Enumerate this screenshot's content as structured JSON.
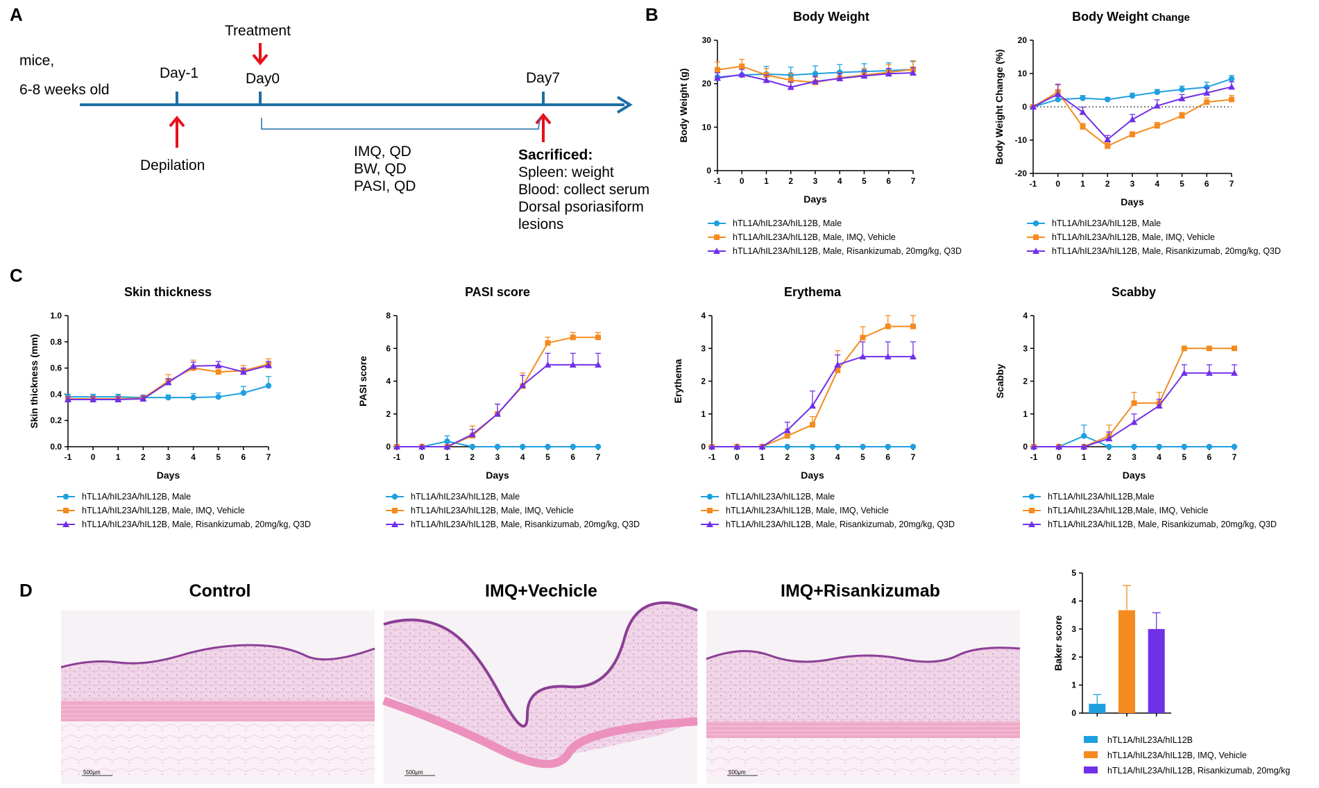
{
  "panels": {
    "a": "A",
    "b": "B",
    "c": "C",
    "d": "D"
  },
  "timeline": {
    "mice": "mice,",
    "age": "6-8 weeks old",
    "day_minus1": "Day-1",
    "depilation": "Depilation",
    "treatment": "Treatment",
    "day0": "Day0",
    "day7": "Day7",
    "dosing": [
      "IMQ, QD",
      "BW, QD",
      "PASI, QD"
    ],
    "sacrificed": "Sacrificed:",
    "sacrificed_items": [
      "Spleen: weight",
      "Blood: collect serum",
      "Dorsal psoriasiform",
      "lesions"
    ]
  },
  "colors": {
    "male": "#1E9FE0",
    "vehicle": "#F58A1F",
    "risankizumab": "#7030E8",
    "axis": "#000000",
    "arrow_red": "#E8101A",
    "timeline_blue": "#1F6FA3"
  },
  "histology": {
    "titles": [
      "Control",
      "IMQ+Vechicle",
      "IMQ+Risankizumab"
    ],
    "scale_bar": "500μm"
  },
  "chart_data": [
    {
      "type": "line",
      "title": "Body Weight",
      "title_small": "",
      "xlabel": "Days",
      "ylabel": "Body Weight (g)",
      "x": [
        -1,
        0,
        1,
        2,
        3,
        4,
        5,
        6,
        7
      ],
      "ylim": [
        0,
        30
      ],
      "yticks": [
        0,
        10,
        20,
        30
      ],
      "zero_line": false,
      "series": [
        {
          "name": "hTL1A/hIL23A/hIL12B, Male",
          "color": "#1E9FE0",
          "marker": "circle",
          "values": [
            21.5,
            22.0,
            22.2,
            22.0,
            22.3,
            22.6,
            22.8,
            23.0,
            23.3
          ],
          "err": [
            1.5,
            1.5,
            1.8,
            1.8,
            1.8,
            1.8,
            1.8,
            1.8,
            1.8
          ]
        },
        {
          "name": "hTL1A/hIL23A/hIL12B, Male, IMQ, Vehicle",
          "color": "#F58A1F",
          "marker": "square",
          "values": [
            23.2,
            24.0,
            22.0,
            20.8,
            20.3,
            21.3,
            22.0,
            22.6,
            23.3
          ],
          "err": [
            1.8,
            1.6,
            1.5,
            1.5,
            1.2,
            1.2,
            1.5,
            1.8,
            2.0
          ]
        },
        {
          "name": "hTL1A/hIL23A/hIL12B, Male, Risankizumab, 20mg/kg, Q3D",
          "color": "#7030E8",
          "marker": "triangle",
          "values": [
            21.3,
            22.1,
            20.8,
            19.2,
            20.5,
            21.2,
            21.8,
            22.3,
            22.5
          ],
          "err": [
            1.2,
            1.2,
            1.2,
            1.2,
            1.2,
            1.2,
            1.2,
            1.2,
            1.2
          ]
        }
      ],
      "legend": "below"
    },
    {
      "type": "line",
      "title": "Body Weight ",
      "title_small": "Change",
      "xlabel": "Days",
      "ylabel": "Body Weight Change (%)",
      "x": [
        -1,
        0,
        1,
        2,
        3,
        4,
        5,
        6,
        7
      ],
      "ylim": [
        -20,
        20
      ],
      "yticks": [
        -20,
        -10,
        0,
        10,
        20
      ],
      "zero_line": true,
      "series": [
        {
          "name": "hTL1A/hIL23A/hIL12B, Male",
          "color": "#1E9FE0",
          "marker": "circle",
          "values": [
            0,
            2.2,
            2.6,
            2.2,
            3.3,
            4.4,
            5.2,
            5.9,
            8.4
          ],
          "err": [
            0,
            1.2,
            0.8,
            0.6,
            0.8,
            0.8,
            1.0,
            1.5,
            1.0
          ]
        },
        {
          "name": "hTL1A/hIL23A/hIL12B, Male, IMQ, Vehicle",
          "color": "#F58A1F",
          "marker": "square",
          "values": [
            0,
            4.5,
            -6.0,
            -11.8,
            -8.3,
            -5.7,
            -2.7,
            1.4,
            2.2
          ],
          "err": [
            0,
            2.0,
            1.0,
            1.0,
            0.8,
            1.0,
            1.0,
            1.3,
            1.2
          ]
        },
        {
          "name": "hTL1A/hIL23A/hIL12B, Male, Risankizumab, 20mg/kg, Q3D",
          "color": "#7030E8",
          "marker": "triangle",
          "values": [
            0,
            3.8,
            -1.6,
            -9.8,
            -3.8,
            0.3,
            2.5,
            4.2,
            6.0
          ],
          "err": [
            0,
            3.0,
            1.5,
            1.2,
            1.5,
            1.8,
            1.2,
            1.5,
            1.5
          ]
        }
      ],
      "legend": "below"
    },
    {
      "type": "line",
      "title": "Skin thickness",
      "title_small": "",
      "xlabel": "Days",
      "ylabel": "Skin thickness (mm)",
      "x": [
        -1,
        0,
        1,
        2,
        3,
        4,
        5,
        6,
        7
      ],
      "ylim": [
        0,
        1.0
      ],
      "yticks": [
        0.0,
        0.2,
        0.4,
        0.6,
        0.8,
        1.0
      ],
      "zero_line": false,
      "series": [
        {
          "name": "hTL1A/hIL23A/hIL12B, Male",
          "color": "#1E9FE0",
          "marker": "circle",
          "values": [
            0.38,
            0.38,
            0.38,
            0.375,
            0.375,
            0.375,
            0.38,
            0.41,
            0.465
          ],
          "err": [
            0.02,
            0.02,
            0.02,
            0.02,
            0.02,
            0.03,
            0.03,
            0.05,
            0.07
          ]
        },
        {
          "name": "hTL1A/hIL23A/hIL12B, Male, IMQ, Vehicle",
          "color": "#F58A1F",
          "marker": "square",
          "values": [
            0.365,
            0.365,
            0.365,
            0.37,
            0.5,
            0.6,
            0.57,
            0.58,
            0.63
          ],
          "err": [
            0.02,
            0.02,
            0.02,
            0.02,
            0.05,
            0.06,
            0.04,
            0.04,
            0.04
          ]
        },
        {
          "name": "hTL1A/hIL23A/hIL12B, Male, Risankizumab, 20mg/kg, Q3D",
          "color": "#7030E8",
          "marker": "triangle",
          "values": [
            0.36,
            0.36,
            0.36,
            0.365,
            0.49,
            0.615,
            0.62,
            0.57,
            0.62
          ],
          "err": [
            0.02,
            0.02,
            0.02,
            0.02,
            0.03,
            0.03,
            0.03,
            0.03,
            0.03
          ]
        }
      ],
      "legend": "below"
    },
    {
      "type": "line",
      "title": "PASI score",
      "title_small": "",
      "xlabel": "Days",
      "ylabel": "PASI score",
      "x": [
        -1,
        0,
        1,
        2,
        3,
        4,
        5,
        6,
        7
      ],
      "ylim": [
        0,
        8
      ],
      "yticks": [
        0,
        2,
        4,
        6,
        8
      ],
      "zero_line": false,
      "series": [
        {
          "name": "hTL1A/hIL23A/hIL12B, Male",
          "color": "#1E9FE0",
          "marker": "circle",
          "values": [
            0,
            0,
            0.33,
            0,
            0,
            0,
            0,
            0,
            0
          ],
          "err": [
            0,
            0,
            0.33,
            0,
            0,
            0,
            0,
            0,
            0
          ]
        },
        {
          "name": "hTL1A/hIL23A/hIL12B, Male, IMQ, Vehicle",
          "color": "#F58A1F",
          "marker": "square",
          "values": [
            0,
            0,
            0,
            0.67,
            2.0,
            3.7,
            6.33,
            6.67,
            6.67
          ],
          "err": [
            0,
            0,
            0,
            0.6,
            0.6,
            0.8,
            0.35,
            0.3,
            0.3
          ]
        },
        {
          "name": "hTL1A/hIL23A/hIL12B, Male, Risankizumab, 20mg/kg, Q3D",
          "color": "#7030E8",
          "marker": "triangle",
          "values": [
            0,
            0,
            0,
            0.75,
            2.0,
            3.75,
            5.0,
            5.0,
            5.0
          ],
          "err": [
            0,
            0,
            0,
            0.3,
            0.6,
            0.6,
            0.7,
            0.7,
            0.7
          ]
        }
      ],
      "legend": "below"
    },
    {
      "type": "line",
      "title": "Erythema",
      "title_small": "",
      "xlabel": "Days",
      "ylabel": "Erythema",
      "x": [
        -1,
        0,
        1,
        2,
        3,
        4,
        5,
        6,
        7
      ],
      "ylim": [
        0,
        4
      ],
      "yticks": [
        0,
        1,
        2,
        3,
        4
      ],
      "zero_line": false,
      "series": [
        {
          "name": "hTL1A/hIL23A/hIL12B, Male",
          "color": "#1E9FE0",
          "marker": "circle",
          "values": [
            0,
            0,
            0,
            0,
            0,
            0,
            0,
            0,
            0
          ],
          "err": [
            0,
            0,
            0,
            0,
            0,
            0,
            0,
            0,
            0
          ]
        },
        {
          "name": "hTL1A/hIL23A/hIL12B, Male, IMQ, Vehicle",
          "color": "#F58A1F",
          "marker": "square",
          "values": [
            0,
            0,
            0,
            0.33,
            0.67,
            2.33,
            3.33,
            3.67,
            3.67
          ],
          "err": [
            0,
            0,
            0,
            0.2,
            0.25,
            0.6,
            0.33,
            0.33,
            0.33
          ]
        },
        {
          "name": "hTL1A/hIL23A/hIL12B, Male, Risankizumab, 20mg/kg, Q3D",
          "color": "#7030E8",
          "marker": "triangle",
          "values": [
            0,
            0,
            0,
            0.5,
            1.25,
            2.5,
            2.75,
            2.75,
            2.75
          ],
          "err": [
            0,
            0,
            0,
            0.25,
            0.45,
            0.3,
            0.45,
            0.45,
            0.45
          ]
        }
      ],
      "legend": "below"
    },
    {
      "type": "line",
      "title": "Scabby",
      "title_small": "",
      "xlabel": "Days",
      "ylabel": "Scabby",
      "x": [
        -1,
        0,
        1,
        2,
        3,
        4,
        5,
        6,
        7
      ],
      "ylim": [
        0,
        4
      ],
      "yticks": [
        0,
        1,
        2,
        3,
        4
      ],
      "zero_line": false,
      "series": [
        {
          "name": "hTL1A/hIL23A/hIL12B,Male",
          "color": "#1E9FE0",
          "marker": "circle",
          "values": [
            0,
            0,
            0.33,
            0,
            0,
            0,
            0,
            0,
            0
          ],
          "err": [
            0,
            0,
            0.33,
            0,
            0,
            0,
            0,
            0,
            0
          ]
        },
        {
          "name": "hTL1A/hIL23A/hIL12B,Male, IMQ, Vehicle",
          "color": "#F58A1F",
          "marker": "square",
          "values": [
            0,
            0,
            0,
            0.33,
            1.33,
            1.33,
            3.0,
            3.0,
            3.0
          ],
          "err": [
            0,
            0,
            0,
            0.33,
            0.33,
            0.33,
            0,
            0,
            0
          ]
        },
        {
          "name": "hTL1A/hIL23A/hIL12B, Male, Risankizumab, 20mg/kg, Q3D",
          "color": "#7030E8",
          "marker": "triangle",
          "values": [
            0,
            0,
            0,
            0.25,
            0.75,
            1.25,
            2.25,
            2.25,
            2.25
          ],
          "err": [
            0,
            0,
            0,
            0.2,
            0.25,
            0.2,
            0.25,
            0.25,
            0.25
          ]
        }
      ],
      "legend": "below"
    },
    {
      "type": "bar",
      "title": "",
      "xlabel": "",
      "ylabel": "Baker score",
      "categories": [
        "hTL1A/hIL23A/hIL12B",
        "hTL1A/hIL23A/hIL12B, IMQ, Vehicle",
        "hTL1A/hIL23A/hIL12B, Risankizumab, 20mg/kg"
      ],
      "values": [
        0.33,
        3.67,
        3.0
      ],
      "err": [
        0.33,
        0.88,
        0.58
      ],
      "colors": [
        "#1E9FE0",
        "#F58A1F",
        "#7030E8"
      ],
      "ylim": [
        0,
        5
      ],
      "yticks": [
        0,
        1,
        2,
        3,
        4,
        5
      ],
      "legend": "below"
    }
  ]
}
